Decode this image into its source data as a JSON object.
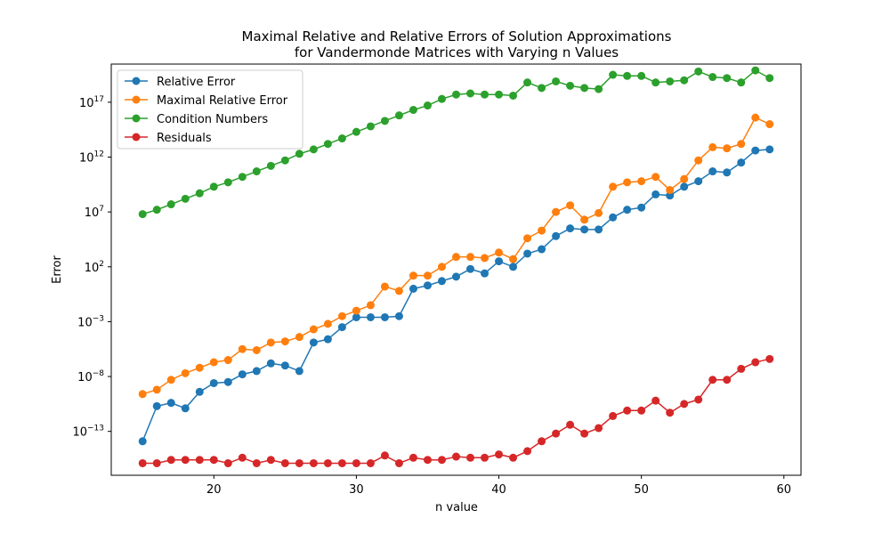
{
  "chart_data": {
    "type": "line",
    "title": [
      "Maximal Relative and Relative Errors of Solution Approximations",
      "for Vandermonde Matrices with Varying n Values"
    ],
    "xlabel": "n value",
    "ylabel": "Error",
    "yscale": "log",
    "xlim": [
      12.8,
      61.2
    ],
    "ylim": [
      1e-17,
      3e+20
    ],
    "xticks": [
      20,
      30,
      40,
      50,
      60
    ],
    "yticks": [
      {
        "value": 1e-13,
        "base": "10",
        "exp": "−13"
      },
      {
        "value": 1e-08,
        "base": "10",
        "exp": "−8"
      },
      {
        "value": 0.001,
        "base": "10",
        "exp": "−3"
      },
      {
        "value": 100.0,
        "base": "10",
        "exp": "2"
      },
      {
        "value": 10000000.0,
        "base": "10",
        "exp": "7"
      },
      {
        "value": 1000000000000.0,
        "base": "10",
        "exp": "12"
      },
      {
        "value": 1e+17,
        "base": "10",
        "exp": "17"
      }
    ],
    "grid": false,
    "legend_position": "top-left",
    "x": [
      15,
      16,
      17,
      18,
      19,
      20,
      21,
      22,
      23,
      24,
      25,
      26,
      27,
      28,
      29,
      30,
      31,
      32,
      33,
      34,
      35,
      36,
      37,
      38,
      39,
      40,
      41,
      42,
      43,
      44,
      45,
      46,
      47,
      48,
      49,
      50,
      51,
      52,
      53,
      54,
      55,
      56,
      57,
      58,
      59
    ],
    "series": [
      {
        "name": "Relative Error",
        "color": "#1f77b4",
        "log10_values": [
          -13.9,
          -10.7,
          -10.4,
          -10.9,
          -9.4,
          -8.6,
          -8.5,
          -7.8,
          -7.5,
          -6.8,
          -7.0,
          -7.5,
          -4.9,
          -4.6,
          -3.5,
          -2.6,
          -2.6,
          -2.6,
          -2.5,
          0.0,
          0.3,
          0.7,
          1.1,
          1.8,
          1.4,
          2.5,
          2.0,
          3.2,
          3.6,
          4.8,
          5.5,
          5.4,
          5.4,
          6.5,
          7.2,
          7.4,
          8.6,
          8.5,
          9.3,
          9.8,
          10.7,
          10.6,
          11.5,
          12.6,
          12.7
        ]
      },
      {
        "name": "Maximal Relative Error",
        "color": "#ff7f0e",
        "log10_values": [
          -9.6,
          -9.2,
          -8.3,
          -7.7,
          -7.2,
          -6.7,
          -6.5,
          -5.5,
          -5.6,
          -4.9,
          -4.8,
          -4.4,
          -3.7,
          -3.2,
          -2.5,
          -2.0,
          -1.5,
          0.2,
          -0.2,
          1.2,
          1.2,
          2.0,
          2.9,
          2.9,
          2.8,
          3.3,
          2.7,
          4.6,
          5.3,
          7.0,
          7.6,
          6.3,
          6.9,
          9.3,
          9.7,
          9.8,
          10.2,
          9.0,
          10.0,
          11.7,
          12.9,
          12.8,
          13.2,
          15.6,
          15.0
        ]
      },
      {
        "name": "Condition Numbers",
        "color": "#2ca02c",
        "log10_values": [
          6.8,
          7.2,
          7.7,
          8.2,
          8.7,
          9.3,
          9.7,
          10.2,
          10.7,
          11.2,
          11.7,
          12.3,
          12.7,
          13.2,
          13.7,
          14.3,
          14.8,
          15.3,
          15.8,
          16.3,
          16.7,
          17.3,
          17.7,
          17.8,
          17.7,
          17.7,
          17.6,
          18.8,
          18.3,
          18.9,
          18.5,
          18.3,
          18.2,
          19.5,
          19.4,
          19.4,
          18.8,
          18.9,
          19.0,
          19.8,
          19.3,
          19.2,
          18.8,
          19.9,
          19.2
        ]
      },
      {
        "name": "Residuals",
        "color": "#d62728",
        "log10_values": [
          -15.9,
          -15.9,
          -15.6,
          -15.6,
          -15.6,
          -15.6,
          -15.9,
          -15.4,
          -15.9,
          -15.6,
          -15.9,
          -15.9,
          -15.9,
          -15.9,
          -15.9,
          -15.9,
          -15.9,
          -15.2,
          -15.9,
          -15.4,
          -15.6,
          -15.6,
          -15.3,
          -15.4,
          -15.4,
          -15.1,
          -15.4,
          -14.8,
          -13.9,
          -13.2,
          -12.4,
          -13.2,
          -12.7,
          -11.6,
          -11.1,
          -11.1,
          -10.2,
          -11.3,
          -10.5,
          -10.1,
          -8.3,
          -8.3,
          -7.3,
          -6.7,
          -6.4
        ]
      }
    ]
  }
}
